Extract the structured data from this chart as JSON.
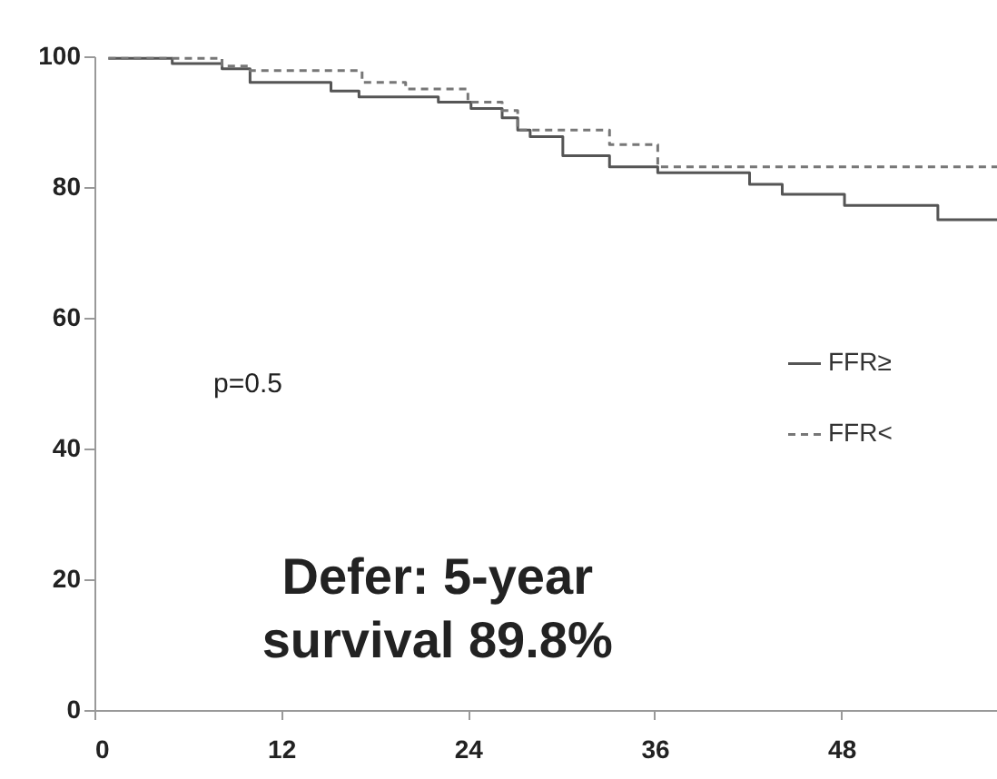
{
  "chart_data": {
    "type": "step",
    "xlim": [
      0,
      58
    ],
    "xticks": [
      0,
      12,
      24,
      36,
      48
    ],
    "ylim": [
      0,
      100
    ],
    "yticks": [
      0,
      20,
      40,
      60,
      80,
      100
    ],
    "grid": false,
    "legend": "right",
    "annotations": [
      "p=0.5",
      "Defer: 5-year survival 89.8%"
    ],
    "series": [
      {
        "name": "FFR≥",
        "color": "#555555",
        "line_style": "solid",
        "x": [
          0.9,
          5,
          8.2,
          10,
          15.2,
          17,
          22.1,
          24.2,
          26.2,
          27.2,
          28,
          30.1,
          33.1,
          36.2,
          42.1,
          44.2,
          48.2,
          54.2,
          58
        ],
        "values": [
          99.7,
          98.9,
          98.1,
          96,
          94.7,
          93.8,
          93,
          92,
          90.6,
          88.7,
          87.7,
          84.8,
          83.1,
          82.2,
          80.4,
          78.9,
          77.2,
          75,
          75
        ]
      },
      {
        "name": "FFR<",
        "color": "#777777",
        "line_style": "dashed",
        "x": [
          0.9,
          8.2,
          10,
          17.2,
          20,
          24,
          26.2,
          27.2,
          33.1,
          36.2,
          58
        ],
        "values": [
          99.7,
          98.5,
          97.8,
          96,
          95,
          93,
          91.7,
          88.7,
          86.5,
          83.1,
          83.1
        ]
      }
    ]
  }
}
